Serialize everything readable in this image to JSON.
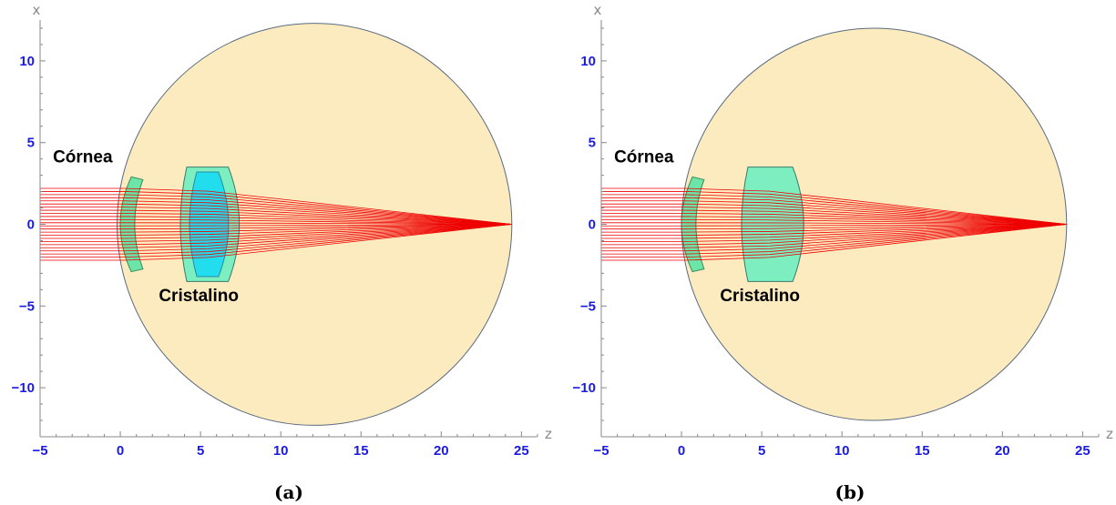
{
  "panels": [
    {
      "caption": "(a)",
      "x_axis_label": "z",
      "y_axis_label": "x",
      "cornea_label": "Córnea",
      "lens_label": "Cristalino",
      "lens_has_nucleus": true,
      "xlim": [
        -5,
        26
      ],
      "ylim": [
        -13,
        12.5
      ],
      "x_ticks": [
        "−5",
        "0",
        "5",
        "10",
        "15",
        "20",
        "25"
      ],
      "y_ticks": [
        "10",
        "5",
        "0",
        "−5",
        "−10"
      ],
      "eye_center_z": 12.1,
      "eye_radius_z": 12.3,
      "eye_radius_x": 12.3,
      "focus_z": 24.4,
      "cornea": {
        "front_z": 0,
        "back_z": 0.55,
        "half_height": 2.9,
        "thickness": 0.5
      },
      "lens": {
        "front_z": 3.8,
        "back_z": 7.3,
        "half_height": 3.5,
        "flat_half_height": 3.5
      },
      "nucleus": {
        "front_z": 4.2,
        "back_z": 6.8,
        "half_height": 3.2
      },
      "ray_count": 24,
      "ray_half_height": 2.2
    },
    {
      "caption": "(b)",
      "x_axis_label": "z",
      "y_axis_label": "x",
      "cornea_label": "Córnea",
      "lens_label": "Cristalino",
      "lens_has_nucleus": false,
      "xlim": [
        -5,
        26
      ],
      "ylim": [
        -13,
        12.5
      ],
      "x_ticks": [
        "−5",
        "0",
        "5",
        "10",
        "15",
        "20",
        "25"
      ],
      "y_ticks": [
        "10",
        "5",
        "0",
        "−5",
        "−10"
      ],
      "eye_center_z": 12.0,
      "eye_radius_z": 12.0,
      "eye_radius_x": 12.0,
      "focus_z": 24.0,
      "cornea": {
        "front_z": 0,
        "back_z": 0.55,
        "half_height": 2.9,
        "thickness": 0.5
      },
      "lens": {
        "front_z": 3.8,
        "back_z": 7.5,
        "half_height": 3.5,
        "flat_half_height": 3.5
      },
      "ray_count": 24,
      "ray_half_height": 2.2
    }
  ],
  "colors": {
    "eye_fill": "#fdebc0",
    "eye_stroke": "#5a6a80",
    "cornea_fill": "#6ce6a8",
    "lens_fill": "#66eec0",
    "nucleus_fill": "#22ddee",
    "ray": "#ee0000",
    "axis": "#888888",
    "tick_text": "#1a1ae6"
  }
}
